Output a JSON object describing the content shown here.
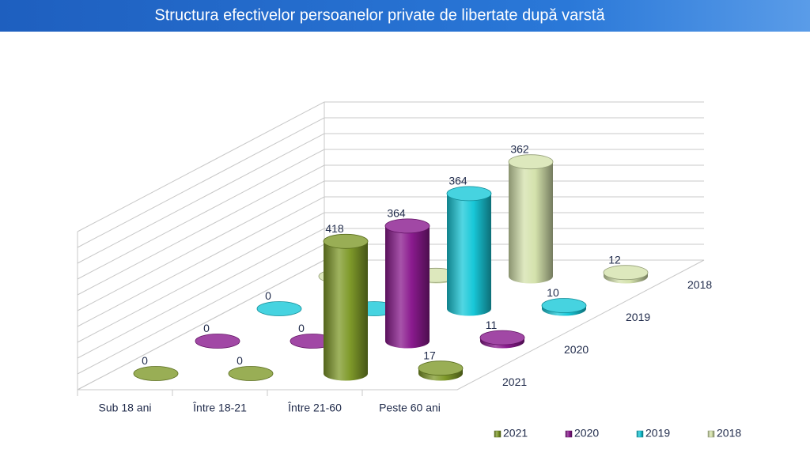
{
  "chart_data": {
    "type": "bar3d",
    "title": "Structura efectivelor persoanelor private de libertate după varstă",
    "categories": [
      "Sub 18 ani",
      "Între 18-21",
      "Între 21-60",
      "Peste 60 ani"
    ],
    "series": [
      {
        "name": "2021",
        "color": "#7f9a2a",
        "values": [
          0,
          0,
          418,
          17
        ]
      },
      {
        "name": "2020",
        "color": "#8a1a8e",
        "values": [
          0,
          0,
          364,
          11
        ]
      },
      {
        "name": "2019",
        "color": "#18c8d8",
        "values": [
          0,
          0,
          364,
          10
        ]
      },
      {
        "name": "2018",
        "color": "#d4e2ac",
        "values": [
          0,
          3,
          362,
          12
        ]
      }
    ],
    "ylim": [
      0,
      500
    ],
    "yticks": [
      0,
      50,
      100,
      150,
      200,
      250,
      300,
      350,
      400,
      450,
      500
    ],
    "grid": true
  }
}
